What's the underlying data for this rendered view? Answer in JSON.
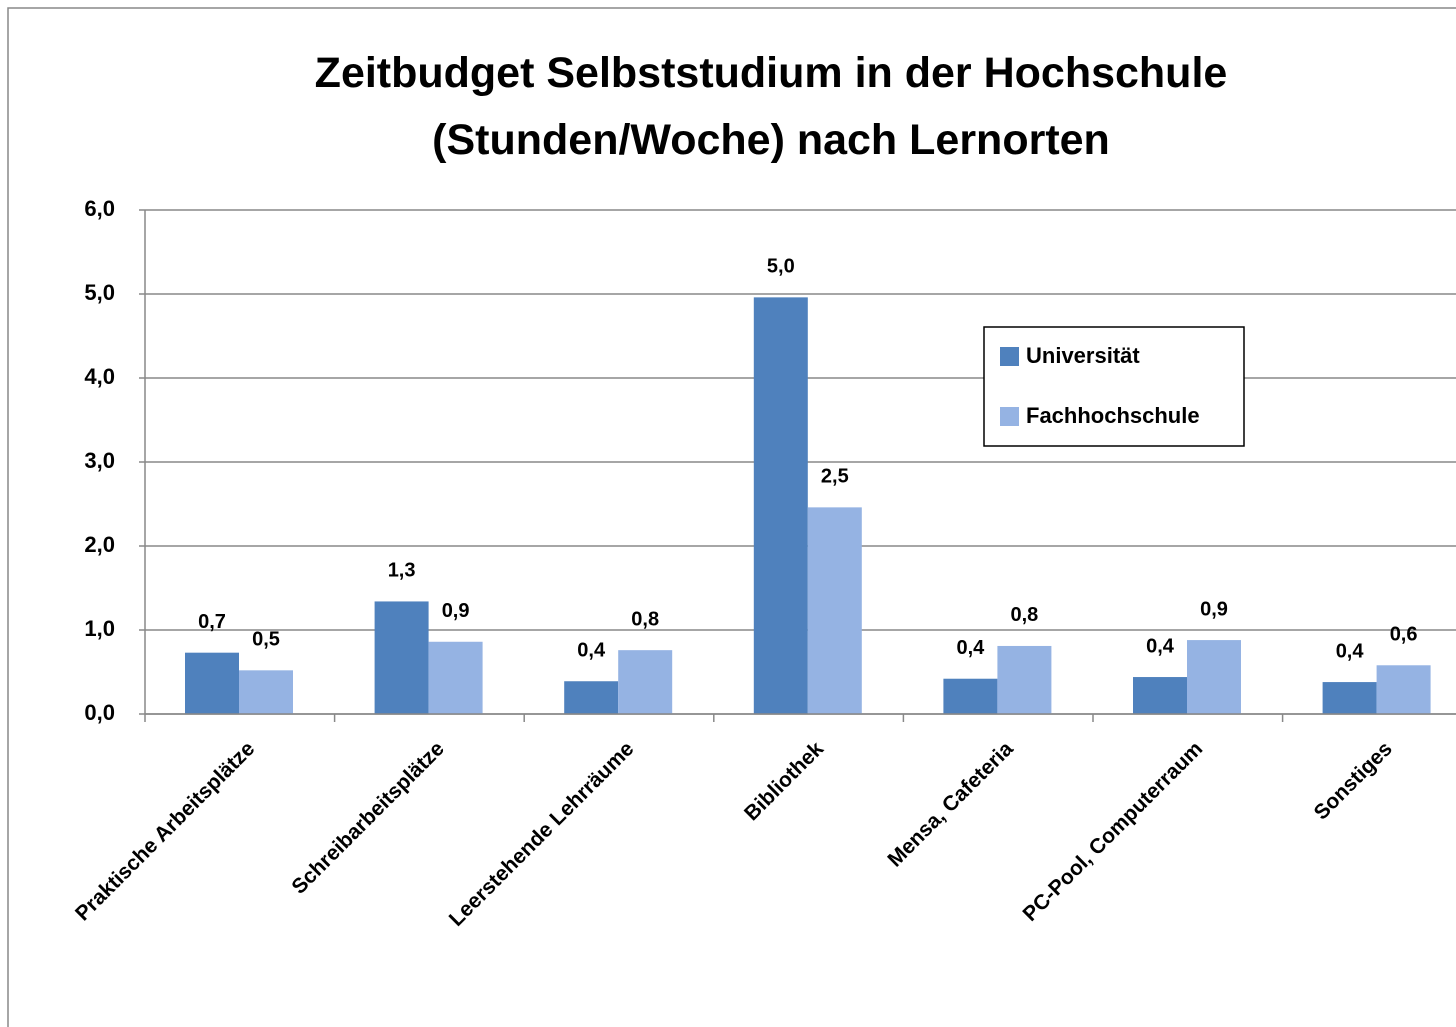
{
  "chart_data": {
    "type": "bar",
    "title": "Zeitbudget Selbststudium in der Hochschule (Stunden/Woche) nach Lernorten",
    "categories": [
      "Praktische Arbeitsplätze",
      "Schreibarbeitsplätze",
      "Leerstehende Lehrräume",
      "Bibliothek",
      "Mensa, Cafeteria",
      "PC-Pool, Computerraum",
      "Sonstiges"
    ],
    "series": [
      {
        "name": "Universität",
        "color": "#4f81bd",
        "values": [
          0.73,
          1.34,
          0.39,
          4.96,
          0.42,
          0.44,
          0.38
        ],
        "value_labels": [
          "0,7",
          "1,3",
          "0,4",
          "5,0",
          "0,4",
          "0,4",
          "0,4"
        ]
      },
      {
        "name": "Fachhochschule",
        "color": "#95b3e3",
        "values": [
          0.52,
          0.86,
          0.76,
          2.46,
          0.81,
          0.88,
          0.58
        ],
        "value_labels": [
          "0,5",
          "0,9",
          "0,8",
          "2,5",
          "0,8",
          "0,9",
          "0,6"
        ]
      }
    ],
    "ylim": [
      0,
      6
    ],
    "yticks": [
      {
        "value": 0,
        "label": "0,0"
      },
      {
        "value": 1,
        "label": "1,0"
      },
      {
        "value": 2,
        "label": "2,0"
      },
      {
        "value": 3,
        "label": "3,0"
      },
      {
        "value": 4,
        "label": "4,0"
      },
      {
        "value": 5,
        "label": "5,0"
      },
      {
        "value": 6,
        "label": "6,0"
      }
    ],
    "grid": true
  }
}
